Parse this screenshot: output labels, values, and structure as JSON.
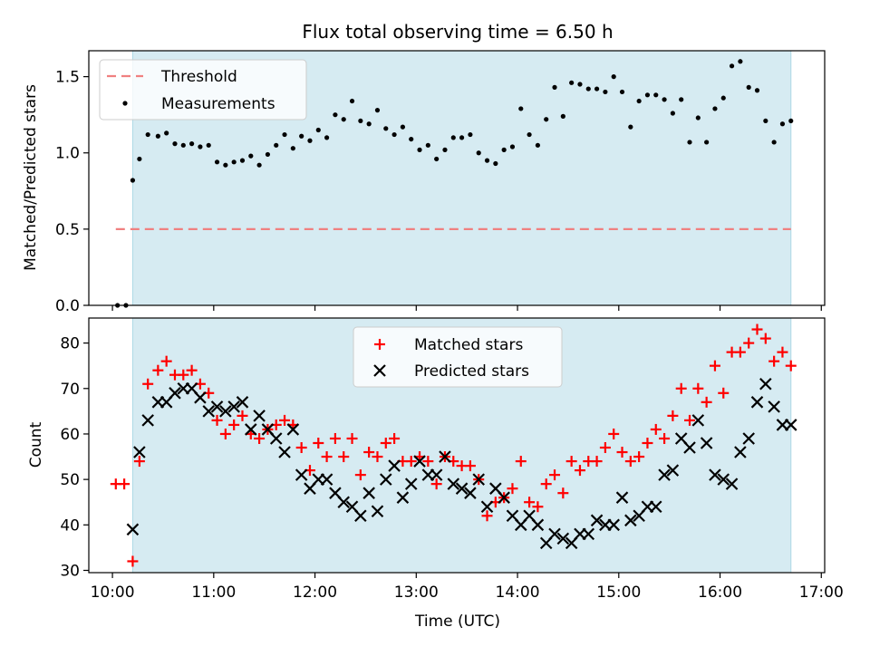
{
  "chart_data": [
    {
      "type": "scatter",
      "title": "Flux total observing time = 6.50 h",
      "xlabel": "",
      "ylabel": "Matched/Predicted stars",
      "xlim": [
        "09:46",
        "17:02"
      ],
      "ylim": [
        0,
        1.67
      ],
      "yticks": [
        0.0,
        0.5,
        1.0,
        1.5
      ],
      "ytick_labels": [
        "0.0",
        "0.5",
        "1.0",
        "1.5"
      ],
      "xticks": [
        "10:00",
        "11:00",
        "12:00",
        "13:00",
        "14:00",
        "15:00",
        "16:00",
        "17:00"
      ],
      "shaded_span": [
        "10:12",
        "16:42"
      ],
      "threshold": {
        "name": "Threshold",
        "value": 0.5,
        "from": "10:02",
        "to": "16:42",
        "color": "#f08080"
      },
      "legend": {
        "position": "upper-left",
        "entries": [
          "Threshold",
          "Measurements"
        ]
      },
      "series": [
        {
          "name": "Measurements",
          "color": "#000000",
          "x": [
            "10:03",
            "10:08",
            "10:12",
            "10:16",
            "10:21",
            "10:27",
            "10:32",
            "10:37",
            "10:42",
            "10:47",
            "10:52",
            "10:57",
            "11:02",
            "11:07",
            "11:12",
            "11:17",
            "11:22",
            "11:27",
            "11:32",
            "11:37",
            "11:42",
            "11:47",
            "11:52",
            "11:57",
            "12:02",
            "12:07",
            "12:12",
            "12:17",
            "12:22",
            "12:27",
            "12:32",
            "12:37",
            "12:42",
            "12:47",
            "12:52",
            "12:57",
            "13:02",
            "13:07",
            "13:12",
            "13:17",
            "13:22",
            "13:27",
            "13:32",
            "13:37",
            "13:42",
            "13:47",
            "13:52",
            "13:57",
            "14:02",
            "14:07",
            "14:12",
            "14:17",
            "14:22",
            "14:27",
            "14:32",
            "14:37",
            "14:42",
            "14:47",
            "14:52",
            "14:57",
            "15:02",
            "15:07",
            "15:12",
            "15:17",
            "15:22",
            "15:27",
            "15:32",
            "15:37",
            "15:42",
            "15:47",
            "15:52",
            "15:57",
            "16:02",
            "16:07",
            "16:12",
            "16:17",
            "16:22",
            "16:27",
            "16:32",
            "16:37",
            "16:42"
          ],
          "y": [
            0.0,
            0.0,
            0.82,
            0.96,
            1.12,
            1.11,
            1.13,
            1.06,
            1.05,
            1.06,
            1.04,
            1.05,
            0.94,
            0.92,
            0.94,
            0.95,
            0.98,
            0.92,
            0.99,
            1.05,
            1.12,
            1.03,
            1.11,
            1.08,
            1.15,
            1.1,
            1.25,
            1.22,
            1.34,
            1.21,
            1.19,
            1.28,
            1.16,
            1.12,
            1.17,
            1.09,
            1.02,
            1.05,
            0.96,
            1.02,
            1.1,
            1.1,
            1.12,
            1.0,
            0.95,
            0.93,
            1.02,
            1.04,
            1.29,
            1.12,
            1.05,
            1.22,
            1.43,
            1.24,
            1.46,
            1.45,
            1.42,
            1.42,
            1.4,
            1.5,
            1.4,
            1.17,
            1.34,
            1.38,
            1.38,
            1.35,
            1.26,
            1.35,
            1.07,
            1.23,
            1.07,
            1.29,
            1.36,
            1.57,
            1.6,
            1.43,
            1.41,
            1.21,
            1.07,
            1.19,
            1.21
          ]
        }
      ]
    },
    {
      "type": "scatter",
      "title": "",
      "xlabel": "Time (UTC)",
      "ylabel": "Count",
      "xlim": [
        "09:46",
        "17:02"
      ],
      "ylim": [
        29.5,
        85.5
      ],
      "yticks": [
        30,
        40,
        50,
        60,
        70,
        80
      ],
      "ytick_labels": [
        "30",
        "40",
        "50",
        "60",
        "70",
        "80"
      ],
      "xticks": [
        "10:00",
        "11:00",
        "12:00",
        "13:00",
        "14:00",
        "15:00",
        "16:00",
        "17:00"
      ],
      "xtick_labels": [
        "10:00",
        "11:00",
        "12:00",
        "13:00",
        "14:00",
        "15:00",
        "16:00",
        "17:00"
      ],
      "shaded_span": [
        "10:12",
        "16:42"
      ],
      "legend": {
        "position": "upper-center",
        "entries": [
          "Matched stars",
          "Predicted stars"
        ]
      },
      "series": [
        {
          "name": "Matched stars",
          "marker": "plus",
          "color": "#ff0000",
          "x": [
            "10:02",
            "10:07",
            "10:12",
            "10:16",
            "10:21",
            "10:27",
            "10:32",
            "10:37",
            "10:42",
            "10:47",
            "10:52",
            "10:57",
            "11:02",
            "11:07",
            "11:12",
            "11:17",
            "11:22",
            "11:27",
            "11:32",
            "11:37",
            "11:42",
            "11:47",
            "11:52",
            "11:57",
            "12:02",
            "12:07",
            "12:12",
            "12:17",
            "12:22",
            "12:27",
            "12:32",
            "12:37",
            "12:42",
            "12:47",
            "12:52",
            "12:57",
            "13:02",
            "13:07",
            "13:12",
            "13:17",
            "13:22",
            "13:27",
            "13:32",
            "13:37",
            "13:42",
            "13:47",
            "13:52",
            "13:57",
            "14:02",
            "14:07",
            "14:12",
            "14:17",
            "14:22",
            "14:27",
            "14:32",
            "14:37",
            "14:42",
            "14:47",
            "14:52",
            "14:57",
            "15:02",
            "15:07",
            "15:12",
            "15:17",
            "15:22",
            "15:27",
            "15:32",
            "15:37",
            "15:42",
            "15:47",
            "15:52",
            "15:57",
            "16:02",
            "16:07",
            "16:12",
            "16:17",
            "16:22",
            "16:27",
            "16:32",
            "16:37",
            "16:42"
          ],
          "y": [
            49,
            49,
            32,
            54,
            71,
            74,
            76,
            73,
            73,
            74,
            71,
            69,
            63,
            60,
            62,
            64,
            60,
            59,
            61,
            62,
            63,
            62,
            57,
            52,
            58,
            55,
            59,
            55,
            59,
            51,
            56,
            55,
            58,
            59,
            54,
            54,
            55,
            54,
            49,
            55,
            54,
            53,
            53,
            50,
            42,
            45,
            46,
            48,
            54,
            45,
            44,
            49,
            51,
            47,
            54,
            52,
            54,
            54,
            57,
            60,
            56,
            54,
            55,
            58,
            61,
            59,
            64,
            70,
            63,
            70,
            67,
            75,
            69,
            78,
            78,
            80,
            83,
            81,
            76,
            78,
            75
          ]
        },
        {
          "name": "Predicted stars",
          "marker": "x",
          "color": "#000000",
          "x": [
            "10:12",
            "10:16",
            "10:21",
            "10:27",
            "10:32",
            "10:37",
            "10:42",
            "10:47",
            "10:52",
            "10:57",
            "11:02",
            "11:07",
            "11:12",
            "11:17",
            "11:22",
            "11:27",
            "11:32",
            "11:37",
            "11:42",
            "11:47",
            "11:52",
            "11:57",
            "12:02",
            "12:07",
            "12:12",
            "12:17",
            "12:22",
            "12:27",
            "12:32",
            "12:37",
            "12:42",
            "12:47",
            "12:52",
            "12:57",
            "13:02",
            "13:07",
            "13:12",
            "13:17",
            "13:22",
            "13:27",
            "13:32",
            "13:37",
            "13:42",
            "13:47",
            "13:52",
            "13:57",
            "14:02",
            "14:07",
            "14:12",
            "14:17",
            "14:22",
            "14:27",
            "14:32",
            "14:37",
            "14:42",
            "14:47",
            "14:52",
            "14:57",
            "15:02",
            "15:07",
            "15:12",
            "15:17",
            "15:22",
            "15:27",
            "15:32",
            "15:37",
            "15:42",
            "15:47",
            "15:52",
            "15:57",
            "16:02",
            "16:07",
            "16:12",
            "16:17",
            "16:22",
            "16:27",
            "16:32",
            "16:37",
            "16:42"
          ],
          "y": [
            39,
            56,
            63,
            67,
            67,
            69,
            70,
            70,
            68,
            65,
            66,
            65,
            66,
            67,
            61,
            64,
            61,
            59,
            56,
            61,
            51,
            48,
            50,
            50,
            47,
            45,
            44,
            42,
            47,
            43,
            50,
            53,
            46,
            49,
            54,
            51,
            51,
            55,
            49,
            48,
            47,
            50,
            44,
            48,
            46,
            42,
            40,
            42,
            40,
            36,
            38,
            37,
            36,
            38,
            38,
            41,
            40,
            40,
            46,
            41,
            42,
            44,
            44,
            51,
            52,
            59,
            57,
            63,
            58,
            51,
            50,
            49,
            56,
            59,
            67,
            71,
            66,
            62,
            62
          ]
        }
      ]
    }
  ]
}
